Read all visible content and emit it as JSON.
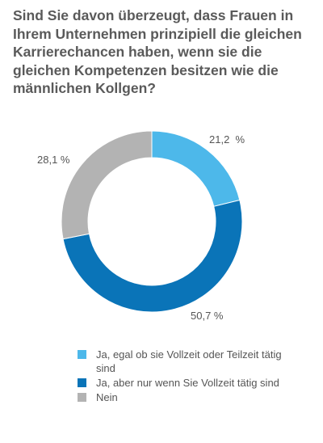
{
  "chart_data": {
    "type": "pie",
    "variant": "donut",
    "title": "Sind Sie davon überzeugt, dass Frauen in Ihrem Unternehmen prinzipiell die gleichen Karrierechancen haben, wenn sie die gleichen Kompetenzen besitzen wie die männlichen Kollgen?",
    "categories": [
      "Ja, egal ob sie Vollzeit oder Teilzeit tätig sind",
      "Ja, aber nur wenn Sie Vollzeit tätig sind",
      "Nein"
    ],
    "values": [
      21.2,
      50.7,
      28.1
    ],
    "value_labels": [
      "21,2  %",
      "50,7 %",
      "28,1 %"
    ],
    "colors": [
      "#4db8ea",
      "#0a74b8",
      "#b3b3b3"
    ],
    "legend_position": "bottom"
  }
}
